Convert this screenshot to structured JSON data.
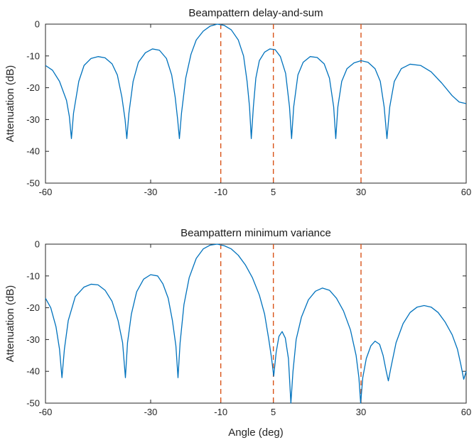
{
  "chart_data": [
    {
      "type": "line",
      "title": "Beampattern delay-and-sum",
      "xlabel": "",
      "ylabel": "Attenuation (dB)",
      "xlim": [
        -60,
        60
      ],
      "ylim": [
        -50,
        0
      ],
      "xticks": [
        -60,
        -30,
        -10,
        5,
        30,
        60
      ],
      "xtick_labels": [
        "-60",
        "-30",
        "-10",
        "5",
        "30",
        "60"
      ],
      "yticks": [
        0,
        -10,
        -20,
        -30,
        -40,
        -50
      ],
      "ytick_labels": [
        "0",
        "-10",
        "-20",
        "-30",
        "-40",
        "-50"
      ],
      "grid": false,
      "line_color": "#0072BD",
      "marker_color": "#D95319",
      "vertical_markers": [
        -10,
        5,
        30
      ],
      "series": [
        {
          "points": [
            [
              -60,
              -13.0
            ],
            [
              -58,
              -14.5
            ],
            [
              -56,
              -18.0
            ],
            [
              -54,
              -24.0
            ],
            [
              -53.2,
              -29.0
            ],
            [
              -52.6,
              -36.0
            ],
            [
              -52,
              -28.0
            ],
            [
              -50.5,
              -18.0
            ],
            [
              -49,
              -13.0
            ],
            [
              -47,
              -10.8
            ],
            [
              -45,
              -10.2
            ],
            [
              -43,
              -10.6
            ],
            [
              -41,
              -12.5
            ],
            [
              -39.5,
              -16.0
            ],
            [
              -38.2,
              -23.0
            ],
            [
              -37.3,
              -30.0
            ],
            [
              -36.8,
              -36.0
            ],
            [
              -36.2,
              -28.0
            ],
            [
              -35,
              -18.0
            ],
            [
              -33.5,
              -12.0
            ],
            [
              -31.5,
              -9.0
            ],
            [
              -29.5,
              -7.8
            ],
            [
              -27.5,
              -8.2
            ],
            [
              -25.5,
              -10.8
            ],
            [
              -24,
              -16.0
            ],
            [
              -23,
              -23.0
            ],
            [
              -22.3,
              -30.0
            ],
            [
              -21.8,
              -36.0
            ],
            [
              -21.2,
              -28.0
            ],
            [
              -20,
              -17.0
            ],
            [
              -18.5,
              -9.5
            ],
            [
              -17,
              -5.0
            ],
            [
              -15,
              -2.2
            ],
            [
              -13,
              -0.6
            ],
            [
              -11,
              0.0
            ],
            [
              -9,
              -0.4
            ],
            [
              -7,
              -1.8
            ],
            [
              -5,
              -5.0
            ],
            [
              -3.5,
              -10.0
            ],
            [
              -2.5,
              -18.0
            ],
            [
              -1.8,
              -26.0
            ],
            [
              -1.3,
              -36.0
            ],
            [
              -0.7,
              -26.0
            ],
            [
              0,
              -17.0
            ],
            [
              1,
              -11.5
            ],
            [
              2.5,
              -8.8
            ],
            [
              4,
              -7.8
            ],
            [
              5.5,
              -8.0
            ],
            [
              7,
              -10.2
            ],
            [
              8.5,
              -15.5
            ],
            [
              9.6,
              -26.0
            ],
            [
              10.2,
              -36.0
            ],
            [
              10.8,
              -26.0
            ],
            [
              12,
              -16.0
            ],
            [
              13.5,
              -12.0
            ],
            [
              15.5,
              -10.2
            ],
            [
              17.5,
              -10.5
            ],
            [
              19.5,
              -12.5
            ],
            [
              21,
              -17.0
            ],
            [
              22.2,
              -26.0
            ],
            [
              22.8,
              -36.0
            ],
            [
              23.4,
              -26.0
            ],
            [
              24.5,
              -18.0
            ],
            [
              26,
              -14.0
            ],
            [
              28,
              -12.2
            ],
            [
              30,
              -11.5
            ],
            [
              32,
              -12.0
            ],
            [
              34,
              -14.0
            ],
            [
              35.5,
              -18.0
            ],
            [
              36.6,
              -26.0
            ],
            [
              37.4,
              -36.0
            ],
            [
              38.2,
              -26.0
            ],
            [
              39.5,
              -18.0
            ],
            [
              41.5,
              -14.0
            ],
            [
              44,
              -12.6
            ],
            [
              47,
              -13.0
            ],
            [
              50,
              -15.0
            ],
            [
              53,
              -18.5
            ],
            [
              56,
              -22.5
            ],
            [
              58,
              -24.5
            ],
            [
              60,
              -25.0
            ]
          ]
        }
      ]
    },
    {
      "type": "line",
      "title": "Beampattern minimum variance",
      "xlabel": "Angle (deg)",
      "ylabel": "Attenuation (dB)",
      "xlim": [
        -60,
        60
      ],
      "ylim": [
        -50,
        0
      ],
      "xticks": [
        -60,
        -30,
        -10,
        5,
        30,
        60
      ],
      "xtick_labels": [
        "-60",
        "-30",
        "-10",
        "5",
        "30",
        "60"
      ],
      "yticks": [
        0,
        -10,
        -20,
        -30,
        -40,
        -50
      ],
      "ytick_labels": [
        "0",
        "-10",
        "-20",
        "-30",
        "-40",
        "-50"
      ],
      "grid": false,
      "line_color": "#0072BD",
      "marker_color": "#D95319",
      "vertical_markers": [
        -10,
        5,
        30
      ],
      "series": [
        {
          "points": [
            [
              -60,
              -17.0
            ],
            [
              -58.5,
              -20.0
            ],
            [
              -57,
              -26.0
            ],
            [
              -56,
              -33.0
            ],
            [
              -55.3,
              -42.0
            ],
            [
              -54.6,
              -33.0
            ],
            [
              -53.5,
              -24.0
            ],
            [
              -51.5,
              -16.5
            ],
            [
              -49,
              -13.5
            ],
            [
              -47,
              -12.6
            ],
            [
              -45,
              -12.8
            ],
            [
              -43,
              -14.5
            ],
            [
              -41,
              -18.0
            ],
            [
              -39.3,
              -24.0
            ],
            [
              -38,
              -31.0
            ],
            [
              -37.2,
              -42.0
            ],
            [
              -36.6,
              -31.0
            ],
            [
              -35.5,
              -22.0
            ],
            [
              -34,
              -15.0
            ],
            [
              -32,
              -11.0
            ],
            [
              -30,
              -9.6
            ],
            [
              -28,
              -10.0
            ],
            [
              -26.5,
              -12.5
            ],
            [
              -25,
              -17.0
            ],
            [
              -23.8,
              -24.0
            ],
            [
              -22.8,
              -32.0
            ],
            [
              -22.2,
              -42.0
            ],
            [
              -21.6,
              -31.0
            ],
            [
              -20.5,
              -19.0
            ],
            [
              -19,
              -10.5
            ],
            [
              -17,
              -4.5
            ],
            [
              -15,
              -1.5
            ],
            [
              -13,
              -0.3
            ],
            [
              -11,
              0.0
            ],
            [
              -9,
              -0.5
            ],
            [
              -7,
              -1.5
            ],
            [
              -5,
              -3.5
            ],
            [
              -3,
              -6.5
            ],
            [
              -1,
              -10.5
            ],
            [
              1,
              -16.0
            ],
            [
              2.5,
              -22.0
            ],
            [
              3.7,
              -30.0
            ],
            [
              4.5,
              -36.0
            ],
            [
              5.1,
              -41.5
            ],
            [
              5.8,
              -34.0
            ],
            [
              6.6,
              -29.0
            ],
            [
              7.5,
              -27.5
            ],
            [
              8.4,
              -29.5
            ],
            [
              9.3,
              -36.0
            ],
            [
              10.0,
              -50.0
            ],
            [
              10.6,
              -40.0
            ],
            [
              11.5,
              -30.0
            ],
            [
              13,
              -23.0
            ],
            [
              15,
              -17.5
            ],
            [
              17,
              -14.8
            ],
            [
              19,
              -13.8
            ],
            [
              21,
              -14.5
            ],
            [
              23,
              -17.0
            ],
            [
              25,
              -21.0
            ],
            [
              27,
              -27.0
            ],
            [
              28.6,
              -35.0
            ],
            [
              29.4,
              -42.0
            ],
            [
              29.9,
              -50.0
            ],
            [
              30.5,
              -42.0
            ],
            [
              31.5,
              -36.0
            ],
            [
              32.8,
              -32.0
            ],
            [
              34,
              -30.5
            ],
            [
              35.3,
              -31.5
            ],
            [
              36.3,
              -35.0
            ],
            [
              37.2,
              -40.0
            ],
            [
              37.8,
              -43.0
            ],
            [
              38.5,
              -39.0
            ],
            [
              40,
              -31.0
            ],
            [
              42,
              -25.0
            ],
            [
              44,
              -21.5
            ],
            [
              46,
              -19.8
            ],
            [
              48,
              -19.3
            ],
            [
              50,
              -19.8
            ],
            [
              52,
              -21.5
            ],
            [
              54,
              -24.5
            ],
            [
              56,
              -28.5
            ],
            [
              57.5,
              -33.0
            ],
            [
              58.5,
              -38.0
            ],
            [
              59.3,
              -42.5
            ],
            [
              60,
              -40.0
            ]
          ]
        }
      ]
    }
  ]
}
